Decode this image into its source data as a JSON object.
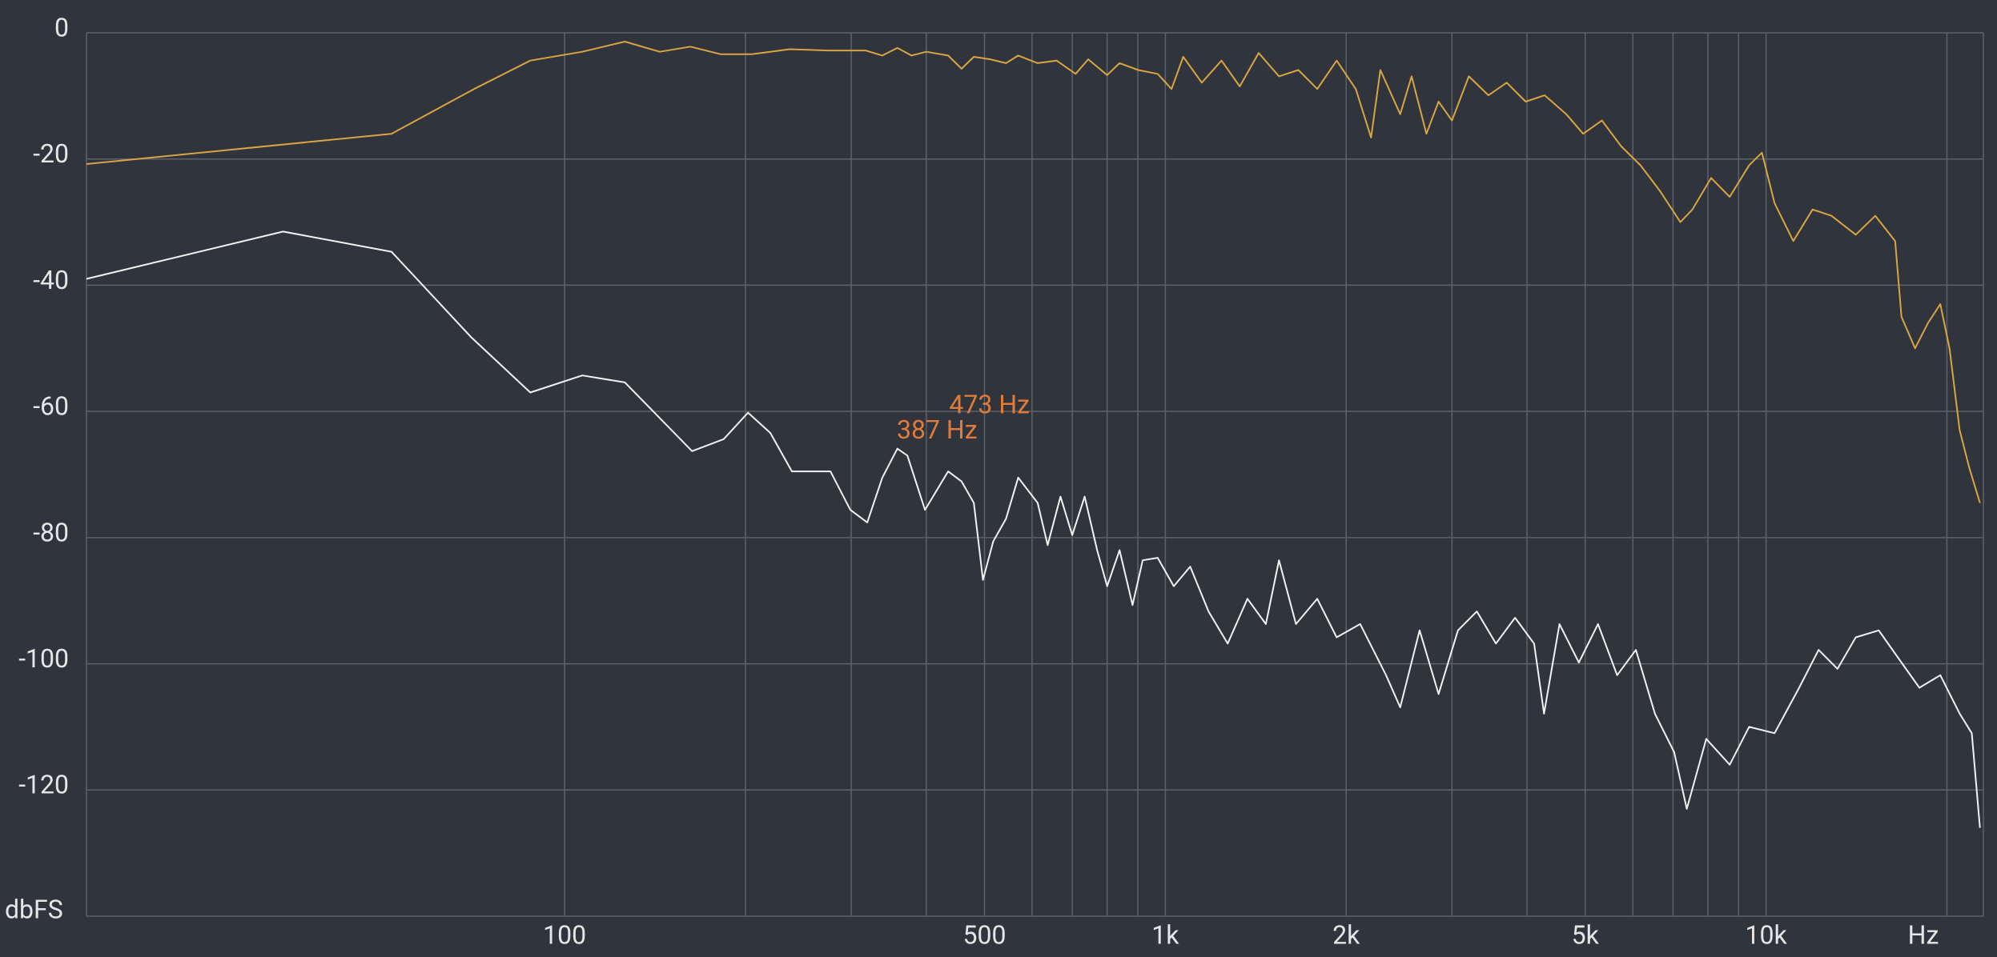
{
  "chart_data": {
    "type": "line",
    "xlog": true,
    "xlim": [
      16,
      23000
    ],
    "ylim": [
      -140,
      0
    ],
    "xticks": [
      {
        "value": 100,
        "label": "100"
      },
      {
        "value": 500,
        "label": "500"
      },
      {
        "value": 1000,
        "label": "1k"
      },
      {
        "value": 2000,
        "label": "2k"
      },
      {
        "value": 5000,
        "label": "5k"
      },
      {
        "value": 10000,
        "label": "10k"
      }
    ],
    "xgrid": [
      200,
      300,
      400,
      600,
      700,
      800,
      900,
      3000,
      4000,
      6000,
      7000,
      8000,
      9000,
      20000
    ],
    "yticks": [
      0,
      -20,
      -40,
      -60,
      -80,
      -100,
      -120
    ],
    "x_unit": "Hz",
    "y_unit": "dbFS",
    "grid": true,
    "background": "#30353d",
    "annotation_color": "#e07b39",
    "annotations": [
      {
        "text": "473 Hz",
        "x": 473,
        "y": -59.2
      },
      {
        "text": "387 Hz",
        "x": 387,
        "y": -63.2
      }
    ],
    "series": [
      {
        "color": "#d9a441",
        "x": [
          16,
          51.5,
          70.7,
          87.7,
          107,
          126,
          144,
          162,
          182,
          205,
          237,
          274,
          317,
          338,
          358,
          378,
          400,
          435,
          458,
          480,
          511,
          543,
          569,
          613,
          659,
          709,
          744,
          800,
          839,
          901,
          971,
          1024,
          1071,
          1150,
          1240,
          1330,
          1430,
          1546,
          1665,
          1790,
          1928,
          2075,
          2200,
          2280,
          2460,
          2570,
          2720,
          2850,
          3000,
          3200,
          3450,
          3700,
          3980,
          4280,
          4650,
          4960,
          5330,
          5740,
          6180,
          6650,
          7200,
          7540,
          8100,
          8700,
          9370,
          9840,
          10330,
          11100,
          11950,
          12850,
          14100,
          15200,
          16400,
          16800,
          17700,
          18600,
          19500,
          20200,
          21000,
          21800,
          22700
        ],
        "values": [
          -20.8,
          -16,
          -8.9,
          -4.4,
          -3.0,
          -1.4,
          -3.0,
          -2.2,
          -3.4,
          -3.4,
          -2.6,
          -2.8,
          -2.8,
          -3.6,
          -2.4,
          -3.6,
          -3.0,
          -3.6,
          -5.7,
          -3.8,
          -4.2,
          -4.8,
          -3.6,
          -4.8,
          -4.4,
          -6.5,
          -4.2,
          -6.7,
          -4.8,
          -5.9,
          -6.5,
          -8.9,
          -3.8,
          -7.9,
          -4.4,
          -8.5,
          -3.2,
          -6.9,
          -5.9,
          -8.9,
          -4.4,
          -8.9,
          -16.6,
          -5.9,
          -12.9,
          -6.9,
          -16,
          -10.9,
          -13.9,
          -6.9,
          -9.9,
          -7.9,
          -10.9,
          -9.9,
          -12.9,
          -16,
          -13.9,
          -18,
          -21,
          -25,
          -30,
          -28,
          -23,
          -26,
          -21,
          -19,
          -27,
          -33,
          -28,
          -29,
          -32,
          -29,
          -33,
          -45,
          -50,
          -46,
          -43,
          -50,
          -63,
          -69,
          -74.5
        ]
      },
      {
        "color": "#f2f2f2",
        "x": [
          16,
          34,
          51.5,
          70,
          87.7,
          107,
          126,
          163,
          184,
          202,
          220,
          239,
          277,
          299,
          319,
          338,
          358,
          372,
          398,
          435,
          458,
          480,
          497,
          517,
          543,
          569,
          613,
          637,
          669,
          700,
          734,
          770,
          800,
          839,
          882,
          917,
          971,
          1033,
          1100,
          1180,
          1270,
          1370,
          1470,
          1546,
          1650,
          1790,
          1928,
          2110,
          2330,
          2460,
          2650,
          2850,
          3070,
          3300,
          3550,
          3820,
          4110,
          4270,
          4530,
          4880,
          5250,
          5650,
          6070,
          6530,
          7030,
          7380,
          7950,
          8700,
          9370,
          10330,
          11350,
          12230,
          13150,
          14100,
          15400,
          16800,
          18000,
          19500,
          21000,
          22000,
          22700
        ],
        "values": [
          -39,
          -31.5,
          -34.7,
          -48.3,
          -57,
          -54.3,
          -55.4,
          -66.3,
          -64.4,
          -60.2,
          -63.4,
          -69.5,
          -69.5,
          -75.6,
          -77.6,
          -70.5,
          -65.9,
          -67,
          -75.6,
          -69.5,
          -71.1,
          -74.5,
          -86.7,
          -80.6,
          -77,
          -70.5,
          -74.5,
          -81.2,
          -73.5,
          -79.6,
          -73.5,
          -82,
          -87.7,
          -82,
          -90.7,
          -83.6,
          -83.2,
          -87.7,
          -84.6,
          -91.7,
          -96.8,
          -89.7,
          -93.7,
          -83.6,
          -93.7,
          -89.7,
          -95.8,
          -93.7,
          -101.8,
          -106.9,
          -94.7,
          -104.8,
          -94.7,
          -91.7,
          -96.8,
          -92.7,
          -96.8,
          -107.9,
          -93.7,
          -99.8,
          -93.7,
          -101.8,
          -97.8,
          -107.9,
          -114,
          -123,
          -111.9,
          -116,
          -110,
          -111,
          -103.8,
          -97.8,
          -100.8,
          -95.8,
          -94.7,
          -99.8,
          -103.8,
          -101.8,
          -107.9,
          -111,
          -126
        ]
      }
    ]
  }
}
